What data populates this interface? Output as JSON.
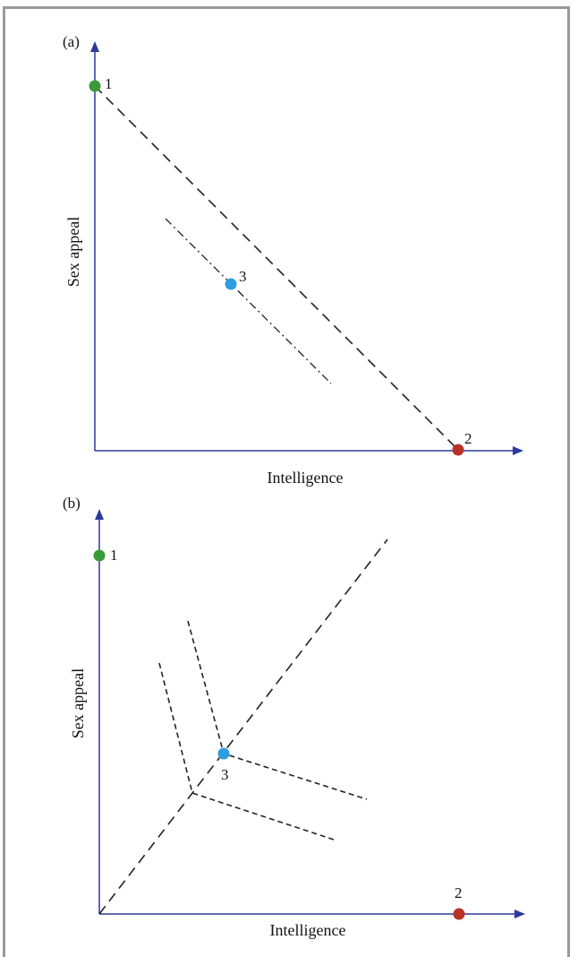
{
  "colors": {
    "axis": "#2b3a9a",
    "point_1": "#3a9a3a",
    "point_2": "#b8322a",
    "point_3": "#2f9ee0",
    "line": "#222222",
    "frame": "#9a9a9a"
  },
  "panel_a": {
    "label": "(a)",
    "x_axis_label": "Intelligence",
    "y_axis_label": "Sex appeal",
    "points": [
      {
        "label": "1"
      },
      {
        "label": "2"
      },
      {
        "label": "3"
      }
    ]
  },
  "panel_b": {
    "label": "(b)",
    "x_axis_label": "Intelligence",
    "y_axis_label": "Sex appeal",
    "points": [
      {
        "label": "1"
      },
      {
        "label": "2"
      },
      {
        "label": "3"
      }
    ]
  }
}
